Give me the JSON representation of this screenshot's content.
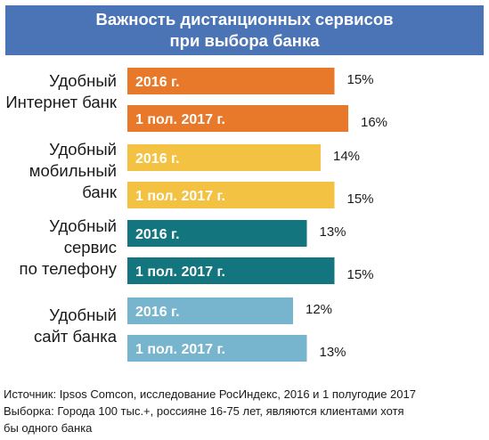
{
  "chart_data": {
    "type": "bar",
    "orientation": "horizontal",
    "title": [
      "Важность дистанционных сервисов",
      "при выбора банка"
    ],
    "xlim": [
      0,
      17
    ],
    "groups": [
      {
        "label": [
          "Удобный",
          "Интернет банк"
        ],
        "color": "#e8792b",
        "bars": [
          {
            "period": "2016 г.",
            "value": 15,
            "value_label": "15%"
          },
          {
            "period": "1 пол. 2017 г.",
            "value": 16,
            "value_label": "16%"
          }
        ]
      },
      {
        "label": [
          "Удобный",
          "мобильный",
          "банк"
        ],
        "color": "#f4c242",
        "bars": [
          {
            "period": "2016 г.",
            "value": 14,
            "value_label": "14%"
          },
          {
            "period": "1 пол. 2017 г.",
            "value": 15,
            "value_label": "15%"
          }
        ]
      },
      {
        "label": [
          "Удобный",
          "сервис",
          "по телефону"
        ],
        "color": "#13757d",
        "bars": [
          {
            "period": "2016 г.",
            "value": 13,
            "value_label": "13%"
          },
          {
            "period": "1 пол. 2017 г.",
            "value": 15,
            "value_label": "15%"
          }
        ]
      },
      {
        "label": [
          "Удобный",
          "сайт банка"
        ],
        "color": "#77b4cd",
        "bars": [
          {
            "period": "2016 г.",
            "value": 12,
            "value_label": "12%"
          },
          {
            "period": "1 пол. 2017 г.",
            "value": 13,
            "value_label": "13%"
          }
        ]
      }
    ]
  },
  "footnote": {
    "source": "Источник: Ipsos Comcon, исследование РосИндекс, 2016 и 1 полугодие 2017",
    "sample_line1": "Выборка: Города 100 тыс.+, россияне 16-75 лет,  являются клиентами хотя",
    "sample_line2": "бы одного банка"
  }
}
